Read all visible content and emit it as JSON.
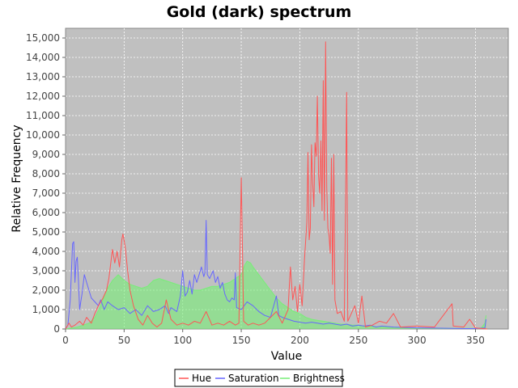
{
  "chart_data": {
    "type": "line",
    "title": "Gold (dark) spectrum",
    "xlabel": "Value",
    "ylabel": "Relative Frequency",
    "xlim": [
      0,
      378
    ],
    "ylim": [
      0,
      15500
    ],
    "x_ticks": [
      0,
      50,
      100,
      150,
      200,
      250,
      300,
      350
    ],
    "y_ticks": [
      0,
      1000,
      2000,
      3000,
      4000,
      5000,
      6000,
      7000,
      8000,
      9000,
      10000,
      11000,
      12000,
      13000,
      14000,
      15000
    ],
    "x_tick_labels": [
      "0",
      "50",
      "100",
      "150",
      "200",
      "250",
      "300",
      "350"
    ],
    "y_tick_labels": [
      "0",
      "1,000",
      "2,000",
      "3,000",
      "4,000",
      "5,000",
      "6,000",
      "7,000",
      "8,000",
      "9,000",
      "10,000",
      "11,000",
      "12,000",
      "13,000",
      "14,000",
      "15,000"
    ],
    "grid": true,
    "background": "#c0c0c0",
    "legend_position": "bottom",
    "series": [
      {
        "name": "Hue",
        "color": "#ff5555",
        "points": [
          [
            0,
            0
          ],
          [
            3,
            300
          ],
          [
            5,
            100
          ],
          [
            8,
            200
          ],
          [
            12,
            400
          ],
          [
            15,
            200
          ],
          [
            18,
            600
          ],
          [
            22,
            300
          ],
          [
            25,
            800
          ],
          [
            28,
            1200
          ],
          [
            32,
            1600
          ],
          [
            35,
            2000
          ],
          [
            37,
            2600
          ],
          [
            40,
            4100
          ],
          [
            42,
            3400
          ],
          [
            44,
            4000
          ],
          [
            46,
            3200
          ],
          [
            48,
            4600
          ],
          [
            49,
            4900
          ],
          [
            51,
            4200
          ],
          [
            53,
            3000
          ],
          [
            55,
            2000
          ],
          [
            58,
            1200
          ],
          [
            62,
            500
          ],
          [
            66,
            200
          ],
          [
            70,
            700
          ],
          [
            74,
            300
          ],
          [
            78,
            100
          ],
          [
            82,
            300
          ],
          [
            86,
            1500
          ],
          [
            90,
            500
          ],
          [
            95,
            200
          ],
          [
            100,
            300
          ],
          [
            105,
            200
          ],
          [
            110,
            400
          ],
          [
            115,
            300
          ],
          [
            120,
            900
          ],
          [
            125,
            200
          ],
          [
            130,
            300
          ],
          [
            135,
            200
          ],
          [
            140,
            400
          ],
          [
            145,
            200
          ],
          [
            148,
            300
          ],
          [
            150,
            7800
          ],
          [
            152,
            400
          ],
          [
            156,
            200
          ],
          [
            160,
            300
          ],
          [
            165,
            200
          ],
          [
            170,
            300
          ],
          [
            175,
            600
          ],
          [
            180,
            900
          ],
          [
            185,
            300
          ],
          [
            190,
            1000
          ],
          [
            192,
            3200
          ],
          [
            194,
            1500
          ],
          [
            196,
            2200
          ],
          [
            198,
            900
          ],
          [
            200,
            2300
          ],
          [
            202,
            1200
          ],
          [
            204,
            3600
          ],
          [
            206,
            5500
          ],
          [
            207,
            9100
          ],
          [
            208,
            4600
          ],
          [
            209,
            5200
          ],
          [
            210,
            9500
          ],
          [
            211,
            7500
          ],
          [
            212,
            6300
          ],
          [
            213,
            9600
          ],
          [
            214,
            8900
          ],
          [
            215,
            12000
          ],
          [
            216,
            7900
          ],
          [
            217,
            7000
          ],
          [
            218,
            9700
          ],
          [
            219,
            6100
          ],
          [
            220,
            12800
          ],
          [
            221,
            5600
          ],
          [
            222,
            14800
          ],
          [
            223,
            7300
          ],
          [
            224,
            5200
          ],
          [
            225,
            4800
          ],
          [
            226,
            3900
          ],
          [
            227,
            8800
          ],
          [
            228,
            2300
          ],
          [
            229,
            9000
          ],
          [
            230,
            1500
          ],
          [
            232,
            800
          ],
          [
            235,
            900
          ],
          [
            238,
            400
          ],
          [
            240,
            12200
          ],
          [
            241,
            400
          ],
          [
            244,
            800
          ],
          [
            247,
            1200
          ],
          [
            250,
            300
          ],
          [
            253,
            1700
          ],
          [
            256,
            100
          ],
          [
            262,
            200
          ],
          [
            268,
            400
          ],
          [
            274,
            300
          ],
          [
            280,
            800
          ],
          [
            286,
            100
          ],
          [
            300,
            150
          ],
          [
            315,
            100
          ],
          [
            330,
            1300
          ],
          [
            331,
            150
          ],
          [
            340,
            100
          ],
          [
            345,
            500
          ],
          [
            350,
            50
          ],
          [
            360,
            0
          ]
        ]
      },
      {
        "name": "Saturation",
        "color": "#6666ff",
        "points": [
          [
            0,
            0
          ],
          [
            2,
            200
          ],
          [
            4,
            1500
          ],
          [
            6,
            4400
          ],
          [
            7,
            4500
          ],
          [
            8,
            2400
          ],
          [
            9,
            3500
          ],
          [
            10,
            3700
          ],
          [
            11,
            2500
          ],
          [
            12,
            1000
          ],
          [
            13,
            1400
          ],
          [
            14,
            1800
          ],
          [
            16,
            2800
          ],
          [
            18,
            2400
          ],
          [
            20,
            2000
          ],
          [
            22,
            1600
          ],
          [
            25,
            1400
          ],
          [
            28,
            1200
          ],
          [
            30,
            1500
          ],
          [
            33,
            1000
          ],
          [
            36,
            1400
          ],
          [
            40,
            1200
          ],
          [
            45,
            1000
          ],
          [
            50,
            1100
          ],
          [
            55,
            800
          ],
          [
            60,
            1000
          ],
          [
            65,
            700
          ],
          [
            70,
            1200
          ],
          [
            75,
            900
          ],
          [
            80,
            1000
          ],
          [
            85,
            1200
          ],
          [
            88,
            800
          ],
          [
            90,
            1100
          ],
          [
            95,
            900
          ],
          [
            98,
            1700
          ],
          [
            100,
            3000
          ],
          [
            102,
            1700
          ],
          [
            104,
            1900
          ],
          [
            106,
            2500
          ],
          [
            108,
            1800
          ],
          [
            110,
            2800
          ],
          [
            112,
            2400
          ],
          [
            114,
            2800
          ],
          [
            116,
            3200
          ],
          [
            118,
            2700
          ],
          [
            119,
            2900
          ],
          [
            120,
            5600
          ],
          [
            121,
            2800
          ],
          [
            123,
            2600
          ],
          [
            126,
            3000
          ],
          [
            128,
            2400
          ],
          [
            130,
            2700
          ],
          [
            132,
            2100
          ],
          [
            134,
            2400
          ],
          [
            136,
            1800
          ],
          [
            138,
            1500
          ],
          [
            140,
            1400
          ],
          [
            142,
            1600
          ],
          [
            144,
            1500
          ],
          [
            145,
            2900
          ],
          [
            146,
            1100
          ],
          [
            150,
            1000
          ],
          [
            155,
            1400
          ],
          [
            160,
            1200
          ],
          [
            165,
            900
          ],
          [
            170,
            700
          ],
          [
            175,
            600
          ],
          [
            180,
            1700
          ],
          [
            182,
            700
          ],
          [
            185,
            600
          ],
          [
            190,
            500
          ],
          [
            195,
            400
          ],
          [
            200,
            350
          ],
          [
            205,
            300
          ],
          [
            210,
            350
          ],
          [
            215,
            300
          ],
          [
            220,
            250
          ],
          [
            225,
            300
          ],
          [
            230,
            250
          ],
          [
            235,
            200
          ],
          [
            240,
            250
          ],
          [
            245,
            150
          ],
          [
            250,
            200
          ],
          [
            255,
            150
          ],
          [
            260,
            200
          ],
          [
            265,
            100
          ],
          [
            270,
            150
          ],
          [
            280,
            100
          ],
          [
            290,
            80
          ],
          [
            300,
            60
          ],
          [
            310,
            50
          ],
          [
            320,
            40
          ],
          [
            330,
            30
          ],
          [
            340,
            20
          ],
          [
            350,
            20
          ],
          [
            358,
            50
          ],
          [
            359,
            500
          ]
        ]
      },
      {
        "name": "Brightness",
        "color": "#77ee77",
        "points": [
          [
            0,
            0
          ],
          [
            10,
            100
          ],
          [
            20,
            300
          ],
          [
            25,
            600
          ],
          [
            30,
            1200
          ],
          [
            35,
            2000
          ],
          [
            40,
            2500
          ],
          [
            45,
            2800
          ],
          [
            50,
            2500
          ],
          [
            55,
            2300
          ],
          [
            60,
            2200
          ],
          [
            65,
            2100
          ],
          [
            70,
            2200
          ],
          [
            75,
            2500
          ],
          [
            80,
            2600
          ],
          [
            85,
            2500
          ],
          [
            90,
            2400
          ],
          [
            95,
            2300
          ],
          [
            100,
            2200
          ],
          [
            105,
            2100
          ],
          [
            110,
            2000
          ],
          [
            115,
            2000
          ],
          [
            120,
            2100
          ],
          [
            125,
            2200
          ],
          [
            130,
            2200
          ],
          [
            135,
            2300
          ],
          [
            140,
            2400
          ],
          [
            145,
            2600
          ],
          [
            150,
            2800
          ],
          [
            153,
            3300
          ],
          [
            155,
            3500
          ],
          [
            158,
            3400
          ],
          [
            160,
            3200
          ],
          [
            165,
            2800
          ],
          [
            170,
            2400
          ],
          [
            175,
            2000
          ],
          [
            180,
            1600
          ],
          [
            185,
            1300
          ],
          [
            190,
            1100
          ],
          [
            195,
            900
          ],
          [
            200,
            800
          ],
          [
            205,
            600
          ],
          [
            210,
            500
          ],
          [
            215,
            450
          ],
          [
            220,
            400
          ],
          [
            225,
            350
          ],
          [
            230,
            300
          ],
          [
            235,
            250
          ],
          [
            240,
            250
          ],
          [
            245,
            200
          ],
          [
            250,
            200
          ],
          [
            255,
            150
          ],
          [
            260,
            150
          ],
          [
            265,
            120
          ],
          [
            270,
            100
          ],
          [
            280,
            80
          ],
          [
            290,
            60
          ],
          [
            300,
            50
          ],
          [
            310,
            40
          ],
          [
            320,
            30
          ],
          [
            330,
            30
          ],
          [
            340,
            30
          ],
          [
            350,
            30
          ],
          [
            355,
            50
          ],
          [
            358,
            300
          ],
          [
            359,
            700
          ]
        ]
      }
    ]
  }
}
